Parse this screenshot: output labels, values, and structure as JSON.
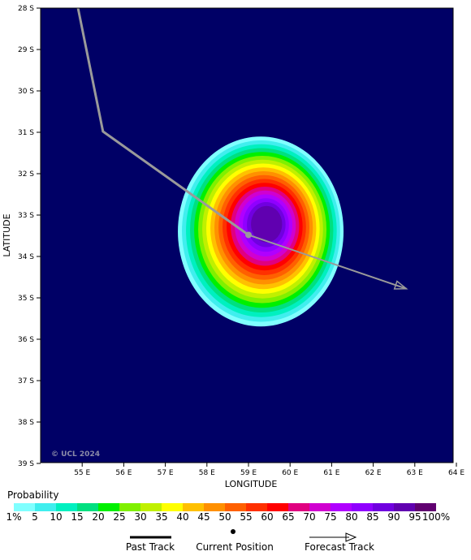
{
  "map": {
    "lat_labels": [
      "28 S",
      "29 S",
      "30 S",
      "31 S",
      "32 S",
      "33 S",
      "34 S",
      "35 S",
      "36 S",
      "37 S",
      "38 S",
      "39 S"
    ],
    "lon_labels": [
      "55 E",
      "56 E",
      "57 E",
      "58 E",
      "59 E",
      "60 E",
      "61 E",
      "62 E",
      "63 E",
      "64 E"
    ],
    "x_axis_title": "LONGITUDE",
    "y_axis_title": "LATITUDE",
    "watermark": "© UCL 2024",
    "lat_range": [
      -39,
      -28
    ],
    "lon_range": [
      54,
      64
    ],
    "background_color": "#000066",
    "track_color": "#9a9a9a",
    "past_track": [
      [
        54.9,
        -28.0
      ],
      [
        55.5,
        -30.98
      ],
      [
        59.0,
        -33.48
      ]
    ],
    "current_position": [
      59.0,
      -33.48
    ],
    "forecast_track": [
      [
        59.0,
        -33.48
      ],
      [
        62.8,
        -34.78
      ]
    ],
    "probability_field": {
      "center": [
        59.45,
        -33.2
      ],
      "peak_percent": 90,
      "edge_percent": 1
    }
  },
  "legend": {
    "title": "Probability",
    "colors": [
      "#80ffff",
      "#40eeee",
      "#00f0c0",
      "#00e080",
      "#00f000",
      "#80f000",
      "#c0f000",
      "#ffff00",
      "#ffc000",
      "#ff9000",
      "#ff6000",
      "#ff3000",
      "#ff0000",
      "#e00080",
      "#d000d0",
      "#b000ff",
      "#9000ff",
      "#7000e0",
      "#6000b0",
      "#600070"
    ],
    "labels": [
      "1%",
      "5",
      "10",
      "15",
      "20",
      "25",
      "30",
      "35",
      "40",
      "45",
      "50",
      "55",
      "60",
      "65",
      "70",
      "75",
      "80",
      "85",
      "90",
      "95",
      "100%"
    ]
  },
  "key": {
    "past_track_label": "Past Track",
    "current_position_label": "Current Position",
    "forecast_track_label": "Forecast Track"
  }
}
